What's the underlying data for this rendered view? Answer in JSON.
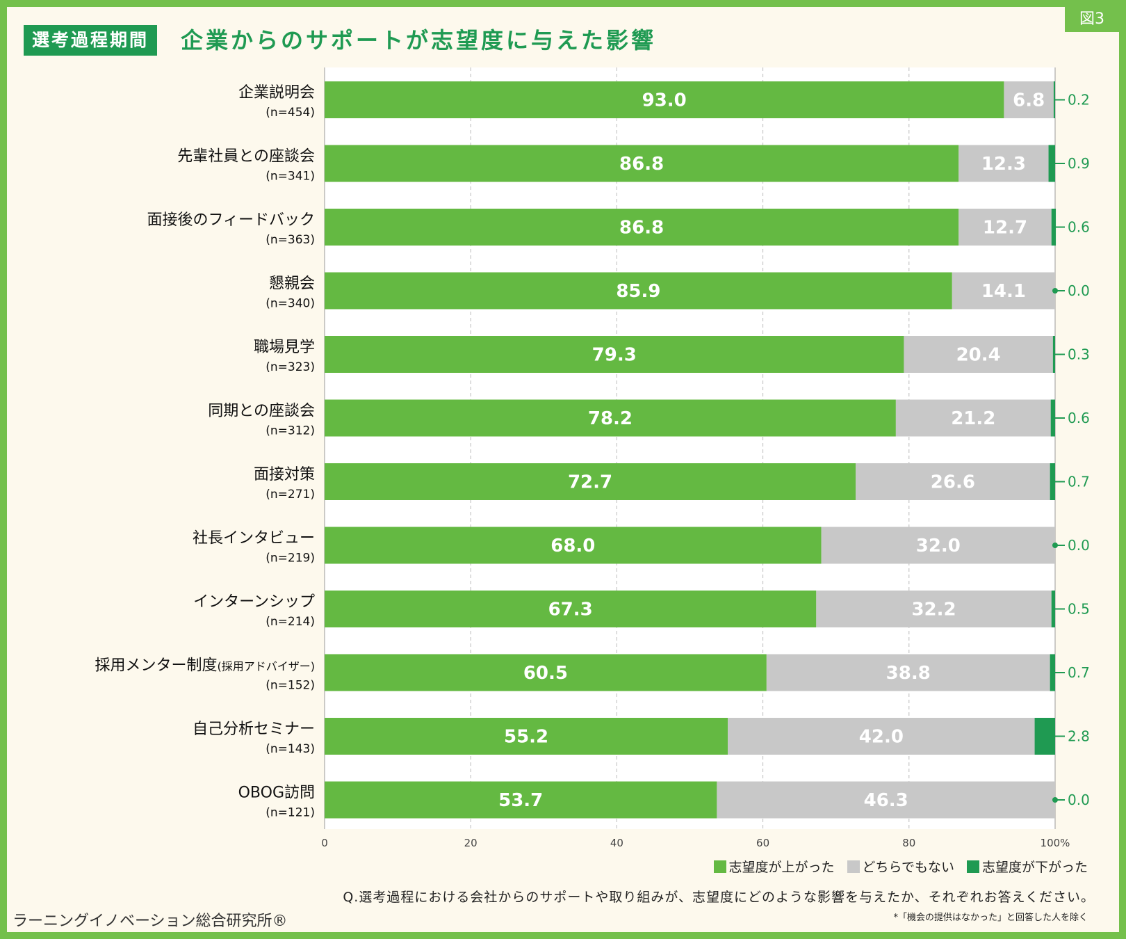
{
  "header": {
    "tag": "選考過程期間",
    "title": "企業からのサポートが志望度に与えた影響",
    "figure_label": "図3"
  },
  "chart_data": {
    "type": "bar",
    "orientation": "horizontal",
    "stacked": true,
    "categories": [
      "企業説明会",
      "先輩社員との座談会",
      "面接後のフィードバック",
      "懇親会",
      "職場見学",
      "同期との座談会",
      "面接対策",
      "社長インタビュー",
      "インターンシップ",
      "採用メンター制度",
      "自己分析セミナー",
      "OBOG訪問"
    ],
    "category_notes": [
      "",
      "",
      "",
      "",
      "",
      "",
      "",
      "",
      "",
      "(採用アドバイザー)",
      "",
      ""
    ],
    "sample_sizes": [
      "(n=454)",
      "(n=341)",
      "(n=363)",
      "(n=340)",
      "(n=323)",
      "(n=312)",
      "(n=271)",
      "(n=219)",
      "(n=214)",
      "(n=152)",
      "(n=143)",
      "(n=121)"
    ],
    "series": [
      {
        "name": "志望度が上がった",
        "color": "#64b942",
        "values": [
          93.0,
          86.8,
          86.8,
          85.9,
          79.3,
          78.2,
          72.7,
          68.0,
          67.3,
          60.5,
          55.2,
          53.7
        ]
      },
      {
        "name": "どちらでもない",
        "color": "#c8c8c8",
        "values": [
          6.8,
          12.3,
          12.7,
          14.1,
          20.4,
          21.2,
          26.6,
          32.0,
          32.2,
          38.8,
          42.0,
          46.3
        ]
      },
      {
        "name": "志望度が下がった",
        "color": "#1f9a52",
        "values": [
          0.2,
          0.9,
          0.6,
          0.0,
          0.3,
          0.6,
          0.7,
          0.0,
          0.5,
          0.7,
          2.8,
          0.0
        ]
      }
    ],
    "x_ticks": [
      "0",
      "20",
      "40",
      "60",
      "80",
      "100%"
    ],
    "xlim": [
      0,
      100
    ],
    "grid": true,
    "legend_position": "bottom-right"
  },
  "footer": {
    "question": "Q.選考過程における会社からのサポートや取り組みが、志望度にどのような影響を与えたか、それぞれお答えください。",
    "footnote": "*「機会の提供はなかった」と回答した人を除く",
    "source": "ラーニングイノベーション総合研究所®"
  }
}
